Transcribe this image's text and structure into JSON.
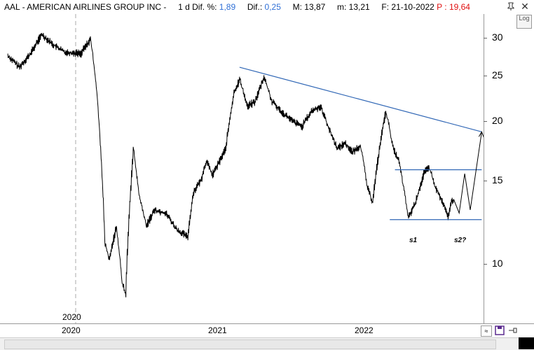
{
  "header": {
    "symbol": "AAL - AMERICAN AIRLINES GROUP INC -",
    "interval": "1 d",
    "dif_pct_label": "Dif. %:",
    "dif_pct_value": "1,89",
    "dif_label": "Dif.:",
    "dif_value": "0,25",
    "max_label": "M:",
    "max_value": "13,87",
    "min_label": "m:",
    "min_value": "13,21",
    "date_label": "F:",
    "date_value": "21-10-2022",
    "price_label": "P :",
    "price_value": "19,64"
  },
  "log_button": "Log",
  "x_axis": {
    "labels": [
      "2020",
      "2021",
      "2022"
    ],
    "marker": "2020"
  },
  "annotations": {
    "s1": "s1",
    "s2": "s2?"
  },
  "colors": {
    "trendline": "#2f66b5",
    "support": "#2f66b5",
    "price": "#000000",
    "dif_value": "#2f6fd6",
    "price_value": "#e01010"
  },
  "icons": [
    "pin-icon",
    "close-icon",
    "save-icon",
    "dock-icon",
    "scroll-icon"
  ],
  "chart_data": {
    "type": "line",
    "scale": "log",
    "ylim": [
      8,
      34
    ],
    "y_ticks": [
      10,
      15,
      20,
      25,
      30
    ],
    "series": [
      {
        "values": [
          [
            "2019-07-01",
            27.5
          ],
          [
            "2019-08-01",
            26.0
          ],
          [
            "2019-09-01",
            27.8
          ],
          [
            "2019-10-01",
            30.5
          ],
          [
            "2019-11-01",
            29.0
          ],
          [
            "2019-12-01",
            28.0
          ],
          [
            "2020-01-15",
            27.8
          ],
          [
            "2020-02-10",
            29.8
          ],
          [
            "2020-02-25",
            24.0
          ],
          [
            "2020-03-10",
            16.5
          ],
          [
            "2020-03-20",
            11.0
          ],
          [
            "2020-04-01",
            10.2
          ],
          [
            "2020-04-20",
            12.0
          ],
          [
            "2020-05-05",
            9.2
          ],
          [
            "2020-05-15",
            8.6
          ],
          [
            "2020-06-05",
            17.5
          ],
          [
            "2020-06-20",
            14.0
          ],
          [
            "2020-07-10",
            12.0
          ],
          [
            "2020-08-01",
            13.0
          ],
          [
            "2020-09-01",
            12.8
          ],
          [
            "2020-10-01",
            11.8
          ],
          [
            "2020-10-30",
            11.4
          ],
          [
            "2020-11-15",
            14.2
          ],
          [
            "2020-12-05",
            15.0
          ],
          [
            "2020-12-20",
            16.5
          ],
          [
            "2021-01-05",
            15.4
          ],
          [
            "2021-01-20",
            16.2
          ],
          [
            "2021-02-10",
            17.5
          ],
          [
            "2021-03-05",
            23.0
          ],
          [
            "2021-03-20",
            24.5
          ],
          [
            "2021-04-10",
            21.5
          ],
          [
            "2021-05-01",
            22.0
          ],
          [
            "2021-05-25",
            24.8
          ],
          [
            "2021-06-15",
            22.0
          ],
          [
            "2021-07-10",
            21.0
          ],
          [
            "2021-08-10",
            20.0
          ],
          [
            "2021-09-05",
            19.5
          ],
          [
            "2021-10-01",
            21.0
          ],
          [
            "2021-10-25",
            21.5
          ],
          [
            "2021-11-20",
            19.0
          ],
          [
            "2021-12-10",
            17.5
          ],
          [
            "2021-12-30",
            18.0
          ],
          [
            "2022-01-20",
            17.2
          ],
          [
            "2022-02-10",
            17.8
          ],
          [
            "2022-03-01",
            14.5
          ],
          [
            "2022-03-15",
            13.5
          ],
          [
            "2022-04-05",
            18.0
          ],
          [
            "2022-04-20",
            21.0
          ],
          [
            "2022-05-10",
            17.5
          ],
          [
            "2022-05-25",
            16.5
          ],
          [
            "2022-06-10",
            14.0
          ],
          [
            "2022-06-20",
            12.5
          ],
          [
            "2022-07-10",
            13.5
          ],
          [
            "2022-08-01",
            15.5
          ],
          [
            "2022-08-15",
            16.0
          ],
          [
            "2022-09-01",
            14.5
          ],
          [
            "2022-09-20",
            13.5
          ],
          [
            "2022-10-05",
            12.6
          ],
          [
            "2022-10-15",
            13.5
          ],
          [
            "2022-10-21",
            13.7
          ]
        ]
      }
    ],
    "trendline": {
      "from": [
        "2021-03-20",
        26.0
      ],
      "to": [
        "2023-01-05",
        19.0
      ]
    },
    "resistance": {
      "from": [
        "2022-05-15",
        15.8
      ],
      "to": [
        "2023-01-05",
        15.8
      ]
    },
    "support": {
      "from": [
        "2022-05-01",
        12.4
      ],
      "to": [
        "2023-01-05",
        12.4
      ]
    },
    "projection": [
      [
        "2022-10-21",
        13.7
      ],
      [
        "2022-11-05",
        12.8
      ],
      [
        "2022-11-20",
        15.5
      ],
      [
        "2022-12-05",
        13.0
      ],
      [
        "2023-01-05",
        19.0
      ]
    ]
  }
}
